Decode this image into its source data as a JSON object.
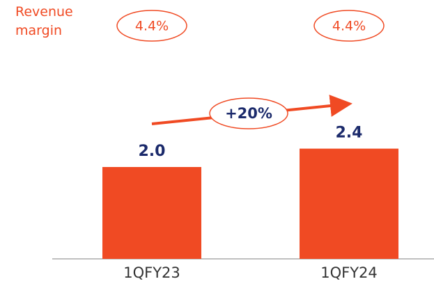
{
  "chart_data": {
    "type": "bar",
    "categories": [
      "1QFY23",
      "1QFY24"
    ],
    "values": [
      2.0,
      2.4
    ],
    "value_labels": [
      "2.0",
      "2.4"
    ],
    "color": "#f04a23",
    "margin_label": "Revenue margin",
    "margins": {
      "values": [
        4.4,
        4.4
      ],
      "value_labels": [
        "4.4%",
        "4.4%"
      ]
    },
    "growth_label": "+20%"
  }
}
